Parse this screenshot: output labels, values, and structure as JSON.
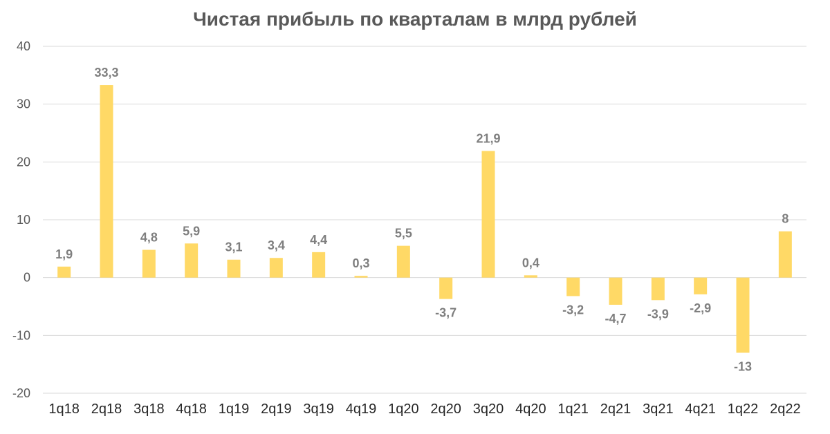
{
  "chart_data": {
    "type": "bar",
    "title": "Чистая прибыль по кварталам в млрд рублей",
    "xlabel": "",
    "ylabel": "",
    "categories": [
      "1q18",
      "2q18",
      "3q18",
      "4q18",
      "1q19",
      "2q19",
      "3q19",
      "4q19",
      "1q20",
      "2q20",
      "3q20",
      "4q20",
      "1q21",
      "2q21",
      "3q21",
      "4q21",
      "1q22",
      "2q22"
    ],
    "values": [
      1.9,
      33.3,
      4.8,
      5.9,
      3.1,
      3.4,
      4.4,
      0.3,
      5.5,
      -3.7,
      21.9,
      0.4,
      -3.2,
      -4.7,
      -3.9,
      -2.9,
      -13,
      8
    ],
    "data_labels": [
      "1,9",
      "33,3",
      "4,8",
      "5,9",
      "3,1",
      "3,4",
      "4,4",
      "0,3",
      "5,5",
      "-3,7",
      "21,9",
      "0,4",
      "-3,2",
      "-4,7",
      "-3,9",
      "-2,9",
      "-13",
      "8"
    ],
    "y_ticks": [
      40,
      30,
      20,
      10,
      0,
      -10,
      -20
    ],
    "ylim": [
      -20,
      40
    ],
    "grid": true,
    "legend": "none",
    "bar_color": "#FFD966"
  }
}
